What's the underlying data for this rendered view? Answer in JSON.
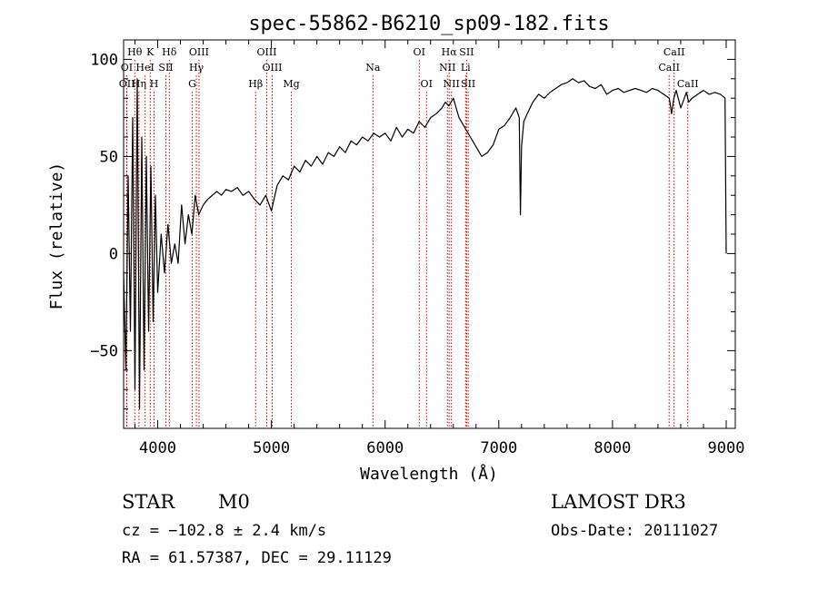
{
  "chart_data": {
    "type": "line",
    "title": "spec-55862-B6210_sp09-182.fits",
    "xlabel": "Wavelength (Å)",
    "ylabel": "Flux (relative)",
    "xlim": [
      3700,
      9080
    ],
    "ylim": [
      -90,
      110
    ],
    "xticks": [
      4000,
      5000,
      6000,
      7000,
      8000,
      9000
    ],
    "xtick_labels": [
      "4000",
      "5000",
      "6000",
      "7000",
      "8000",
      "9000"
    ],
    "yticks": [
      -50,
      0,
      50,
      100
    ],
    "ytick_labels": [
      "−50",
      "0",
      "50",
      "100"
    ],
    "series": [
      {
        "name": "flux",
        "x": [
          3700,
          3720,
          3740,
          3760,
          3780,
          3800,
          3820,
          3840,
          3860,
          3880,
          3900,
          3920,
          3940,
          3960,
          3980,
          4000,
          4030,
          4060,
          4090,
          4120,
          4150,
          4180,
          4210,
          4240,
          4270,
          4300,
          4330,
          4360,
          4400,
          4440,
          4480,
          4520,
          4560,
          4600,
          4650,
          4700,
          4750,
          4800,
          4850,
          4900,
          4950,
          5000,
          5050,
          5100,
          5150,
          5200,
          5250,
          5300,
          5350,
          5400,
          5450,
          5500,
          5550,
          5600,
          5650,
          5700,
          5750,
          5800,
          5850,
          5900,
          5950,
          6000,
          6050,
          6100,
          6150,
          6200,
          6250,
          6300,
          6350,
          6400,
          6450,
          6500,
          6530,
          6560,
          6600,
          6650,
          6700,
          6750,
          6800,
          6850,
          6900,
          6950,
          7000,
          7050,
          7100,
          7150,
          7180,
          7190,
          7200,
          7220,
          7250,
          7300,
          7350,
          7400,
          7450,
          7500,
          7550,
          7600,
          7650,
          7700,
          7750,
          7800,
          7850,
          7900,
          7950,
          8000,
          8050,
          8100,
          8150,
          8200,
          8250,
          8300,
          8350,
          8400,
          8450,
          8500,
          8520,
          8540,
          8560,
          8600,
          8650,
          8670,
          8700,
          8750,
          8800,
          8850,
          8900,
          8950,
          8990,
          9000
        ],
        "y": [
          -10,
          -60,
          40,
          -40,
          70,
          -70,
          90,
          -80,
          60,
          -60,
          50,
          -40,
          45,
          -35,
          30,
          -20,
          10,
          -10,
          15,
          -5,
          5,
          -5,
          25,
          5,
          20,
          10,
          30,
          20,
          25,
          28,
          30,
          32,
          30,
          33,
          32,
          34,
          30,
          32,
          28,
          25,
          30,
          22,
          35,
          40,
          38,
          45,
          42,
          48,
          45,
          50,
          46,
          52,
          50,
          55,
          52,
          58,
          56,
          60,
          58,
          62,
          60,
          62,
          58,
          65,
          60,
          64,
          62,
          68,
          65,
          70,
          72,
          75,
          78,
          76,
          80,
          70,
          65,
          60,
          55,
          50,
          52,
          56,
          64,
          66,
          70,
          75,
          70,
          20,
          55,
          68,
          72,
          78,
          82,
          80,
          83,
          85,
          87,
          88,
          90,
          88,
          89,
          86,
          85,
          87,
          82,
          84,
          85,
          83,
          84,
          85,
          84,
          83,
          85,
          84,
          82,
          80,
          72,
          80,
          84,
          75,
          83,
          78,
          80,
          82,
          84,
          82,
          83,
          82,
          80,
          0
        ]
      }
    ],
    "spectral_lines": [
      {
        "label": "Hθ",
        "row": 1,
        "wl": 3798
      },
      {
        "label": "K",
        "row": 1,
        "wl": 3934
      },
      {
        "label": "Hδ",
        "row": 1,
        "wl": 4102
      },
      {
        "label": "OIII",
        "row": 1,
        "wl": 4363
      },
      {
        "label": "OIII",
        "row": 1,
        "wl": 4959
      },
      {
        "label": "OI",
        "row": 1,
        "wl": 6300
      },
      {
        "label": "Hα",
        "row": 1,
        "wl": 6563
      },
      {
        "label": "SII",
        "row": 1,
        "wl": 6717
      },
      {
        "label": "CaII",
        "row": 1,
        "wl": 8542
      },
      {
        "label": "OI",
        "row": 2,
        "wl": 3727
      },
      {
        "label": "HeI",
        "row": 2,
        "wl": 3889
      },
      {
        "label": "SII",
        "row": 2,
        "wl": 4072
      },
      {
        "label": "Hγ",
        "row": 2,
        "wl": 4340
      },
      {
        "label": "OIII",
        "row": 2,
        "wl": 5007
      },
      {
        "label": "Na",
        "row": 2,
        "wl": 5893
      },
      {
        "label": "NII",
        "row": 2,
        "wl": 6548
      },
      {
        "label": "Li",
        "row": 2,
        "wl": 6708
      },
      {
        "label": "CaII",
        "row": 2,
        "wl": 8498
      },
      {
        "label": "OII",
        "row": 3,
        "wl": 3729
      },
      {
        "label": "Hη",
        "row": 3,
        "wl": 3835
      },
      {
        "label": "H",
        "row": 3,
        "wl": 3968
      },
      {
        "label": "G",
        "row": 3,
        "wl": 4304
      },
      {
        "label": "Hβ",
        "row": 3,
        "wl": 4861
      },
      {
        "label": "Mg",
        "row": 3,
        "wl": 5175
      },
      {
        "label": "OI",
        "row": 3,
        "wl": 6364
      },
      {
        "label": "NII",
        "row": 3,
        "wl": 6583
      },
      {
        "label": "SII",
        "row": 3,
        "wl": 6731
      },
      {
        "label": "CaII",
        "row": 3,
        "wl": 8662
      }
    ]
  },
  "info": {
    "object_class": "STAR",
    "subclass": "M0",
    "survey": "LAMOST DR3",
    "cz": "cz = −102.8 ± 2.4 km/s",
    "obs_date": "Obs-Date: 20111027",
    "coords": "RA =  61.57387, DEC =  29.11129"
  },
  "colors": {
    "line": "#000000",
    "marker": "#cc0000",
    "axis": "#000000"
  }
}
